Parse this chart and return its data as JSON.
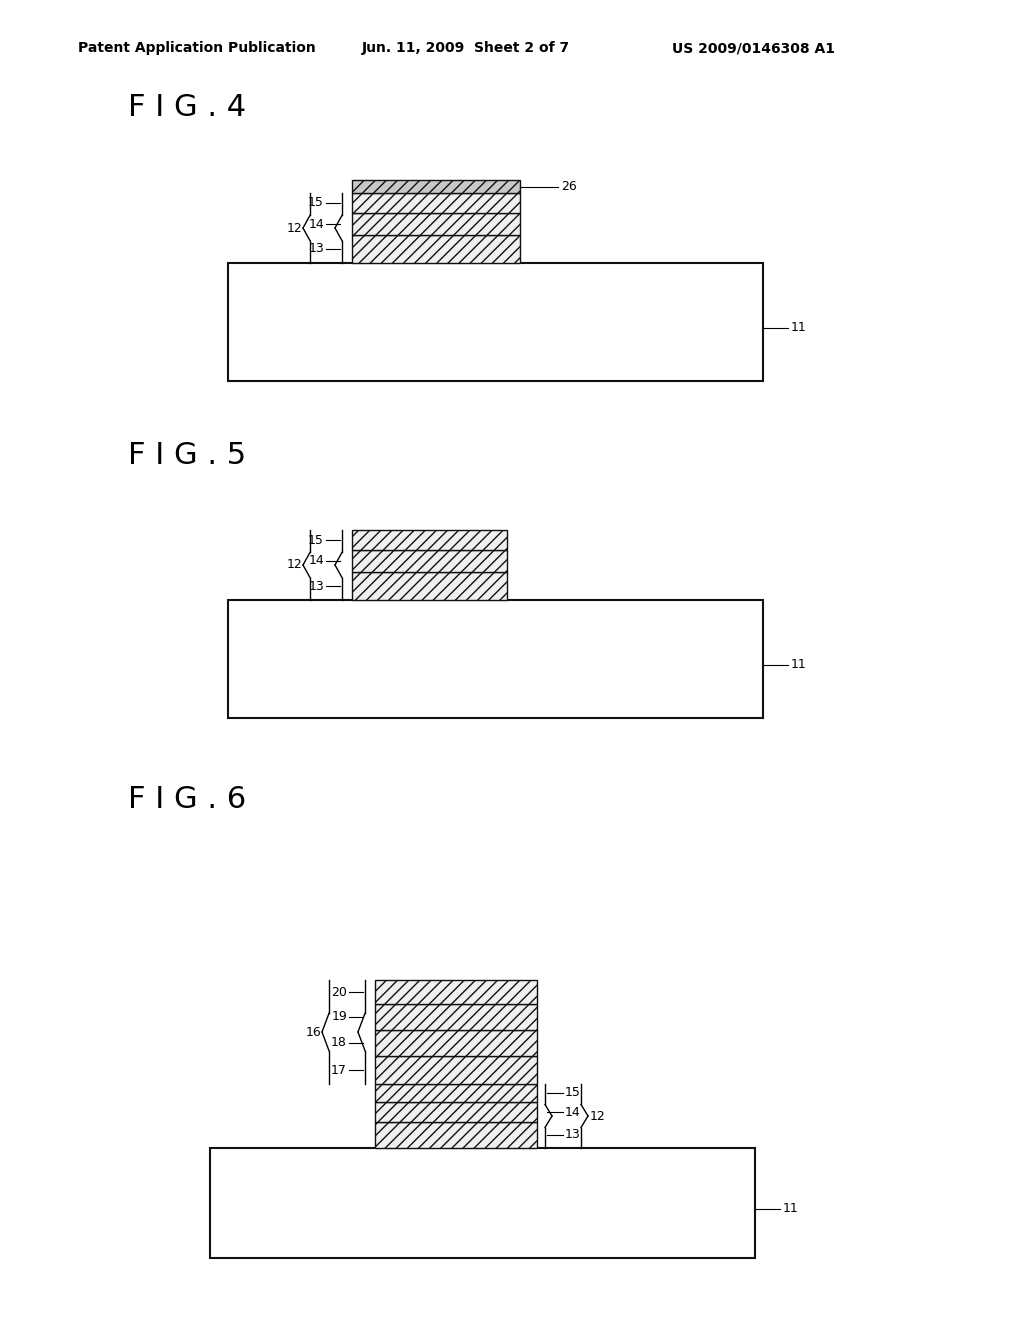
{
  "background_color": "#ffffff",
  "header_left": "Patent Application Publication",
  "header_center": "Jun. 11, 2009  Sheet 2 of 7",
  "header_right": "US 2009/0146308 A1",
  "fig4_title": "F I G . 4",
  "fig5_title": "F I G . 5",
  "fig6_title": "F I G . 6",
  "hatch_pattern": "///",
  "line_color": "#000000"
}
